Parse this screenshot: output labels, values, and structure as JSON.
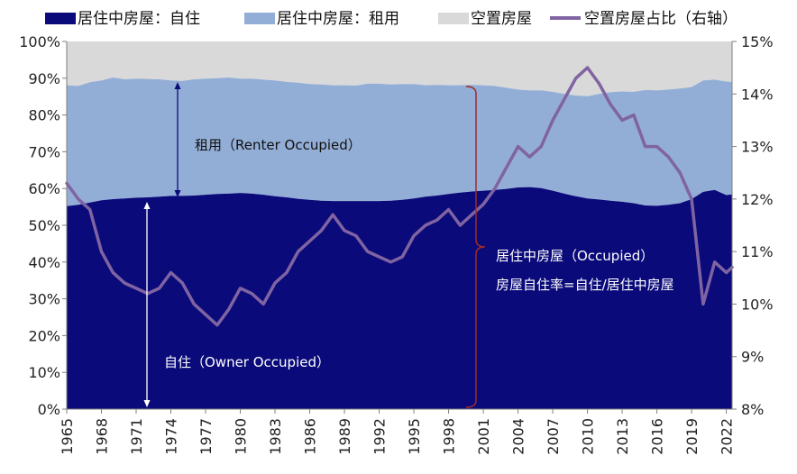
{
  "chart_data": {
    "type": "area",
    "title": "",
    "xlabel": "",
    "ylabel": "",
    "x_ticks": [
      "1965",
      "1968",
      "1971",
      "1974",
      "1977",
      "1980",
      "1983",
      "1986",
      "1989",
      "1992",
      "1995",
      "1998",
      "2001",
      "2004",
      "2007",
      "2010",
      "2013",
      "2016",
      "2019",
      "2022"
    ],
    "y_left_ticks": [
      "0%",
      "10%",
      "20%",
      "30%",
      "40%",
      "50%",
      "60%",
      "70%",
      "80%",
      "90%",
      "100%"
    ],
    "y_right_ticks": [
      "8%",
      "9%",
      "10%",
      "11%",
      "12%",
      "13%",
      "14%",
      "15%"
    ],
    "xlim": [
      1965,
      2022.5
    ],
    "ylim_left": [
      0,
      100
    ],
    "ylim_right": [
      8,
      15
    ],
    "legend": [
      {
        "name": "居住中房屋：自住",
        "kind": "area",
        "color": "#0a0a7a"
      },
      {
        "name": "居住中房屋：租用",
        "kind": "area",
        "color": "#93aed6"
      },
      {
        "name": "空置房屋",
        "kind": "area",
        "color": "#d9d9d9"
      },
      {
        "name": "空置房屋占比（右轴）",
        "kind": "line",
        "color": "#8064a2"
      }
    ],
    "series": [
      {
        "name": "居住中房屋：自住",
        "axis": "left",
        "x": [
          1965,
          1966,
          1967,
          1968,
          1969,
          1970,
          1971,
          1972,
          1973,
          1974,
          1975,
          1976,
          1977,
          1978,
          1979,
          1980,
          1981,
          1982,
          1983,
          1984,
          1985,
          1986,
          1987,
          1988,
          1989,
          1990,
          1991,
          1992,
          1993,
          1994,
          1995,
          1996,
          1997,
          1998,
          1999,
          2000,
          2001,
          2002,
          2003,
          2004,
          2005,
          2006,
          2007,
          2008,
          2009,
          2010,
          2011,
          2012,
          2013,
          2014,
          2015,
          2016,
          2017,
          2018,
          2019,
          2020,
          2021,
          2022,
          2022.5
        ],
        "values": [
          55.2,
          55.6,
          56.2,
          56.8,
          57.1,
          57.3,
          57.5,
          57.6,
          57.8,
          58.0,
          58.0,
          58.1,
          58.3,
          58.5,
          58.6,
          58.8,
          58.6,
          58.3,
          57.9,
          57.6,
          57.2,
          56.9,
          56.7,
          56.6,
          56.6,
          56.6,
          56.6,
          56.6,
          56.7,
          56.9,
          57.3,
          57.8,
          58.1,
          58.5,
          58.9,
          59.2,
          59.4,
          59.6,
          59.9,
          60.3,
          60.4,
          60.1,
          59.4,
          58.6,
          57.9,
          57.3,
          57.0,
          56.7,
          56.4,
          56.0,
          55.4,
          55.3,
          55.6,
          56.0,
          57.1,
          59.1,
          59.6,
          58.2,
          58.4
        ]
      },
      {
        "name": "居住中房屋：租用",
        "axis": "left",
        "x": [
          1965,
          1966,
          1967,
          1968,
          1969,
          1970,
          1971,
          1972,
          1973,
          1974,
          1975,
          1976,
          1977,
          1978,
          1979,
          1980,
          1981,
          1982,
          1983,
          1984,
          1985,
          1986,
          1987,
          1988,
          1989,
          1990,
          1991,
          1992,
          1993,
          1994,
          1995,
          1996,
          1997,
          1998,
          1999,
          2000,
          2001,
          2002,
          2003,
          2004,
          2005,
          2006,
          2007,
          2008,
          2009,
          2010,
          2011,
          2012,
          2013,
          2014,
          2015,
          2016,
          2017,
          2018,
          2019,
          2020,
          2021,
          2022,
          2022.5
        ],
        "values": [
          32.9,
          32.3,
          32.7,
          32.6,
          33.1,
          32.4,
          32.4,
          32.2,
          31.9,
          31.4,
          31.3,
          31.6,
          31.6,
          31.5,
          31.6,
          31.1,
          31.3,
          31.3,
          31.5,
          31.4,
          31.6,
          31.5,
          31.6,
          31.5,
          31.5,
          31.4,
          31.9,
          31.9,
          31.6,
          31.5,
          31.1,
          30.3,
          30.1,
          29.6,
          29.2,
          29.0,
          28.7,
          28.3,
          27.5,
          26.6,
          26.3,
          26.6,
          26.9,
          27.1,
          27.4,
          27.8,
          28.7,
          29.5,
          30.0,
          30.3,
          31.4,
          31.4,
          31.3,
          31.2,
          30.5,
          30.3,
          30.0,
          30.9,
          30.6
        ]
      },
      {
        "name": "空置房屋",
        "axis": "left",
        "x": [
          1965,
          1966,
          1967,
          1968,
          1969,
          1970,
          1971,
          1972,
          1973,
          1974,
          1975,
          1976,
          1977,
          1978,
          1979,
          1980,
          1981,
          1982,
          1983,
          1984,
          1985,
          1986,
          1987,
          1988,
          1989,
          1990,
          1991,
          1992,
          1993,
          1994,
          1995,
          1996,
          1997,
          1998,
          1999,
          2000,
          2001,
          2002,
          2003,
          2004,
          2005,
          2006,
          2007,
          2008,
          2009,
          2010,
          2011,
          2012,
          2013,
          2014,
          2015,
          2016,
          2017,
          2018,
          2019,
          2020,
          2021,
          2022,
          2022.5
        ],
        "values": [
          11.9,
          12.1,
          11.1,
          10.6,
          9.8,
          10.3,
          10.1,
          10.2,
          10.3,
          10.6,
          10.7,
          10.3,
          10.1,
          10.0,
          9.8,
          10.1,
          10.1,
          10.4,
          10.6,
          11.0,
          11.2,
          11.6,
          11.7,
          11.9,
          11.9,
          12.0,
          11.5,
          11.5,
          11.7,
          11.6,
          11.6,
          11.9,
          11.8,
          11.9,
          11.9,
          11.8,
          11.9,
          12.1,
          12.6,
          13.1,
          13.3,
          13.3,
          13.7,
          14.3,
          14.7,
          14.9,
          14.3,
          13.8,
          13.6,
          13.7,
          13.2,
          13.3,
          13.1,
          12.8,
          12.4,
          10.6,
          10.4,
          10.9,
          11.0
        ]
      },
      {
        "name": "空置房屋占比（右轴）",
        "axis": "right",
        "x": [
          1965,
          1966,
          1967,
          1968,
          1969,
          1970,
          1971,
          1972,
          1973,
          1974,
          1975,
          1976,
          1977,
          1978,
          1979,
          1980,
          1981,
          1982,
          1983,
          1984,
          1985,
          1986,
          1987,
          1988,
          1989,
          1990,
          1991,
          1992,
          1993,
          1994,
          1995,
          1996,
          1997,
          1998,
          1999,
          2000,
          2001,
          2002,
          2003,
          2004,
          2005,
          2006,
          2007,
          2008,
          2009,
          2010,
          2011,
          2012,
          2013,
          2014,
          2015,
          2016,
          2017,
          2018,
          2019,
          2020,
          2021,
          2022,
          2022.5
        ],
        "values": [
          12.3,
          12.0,
          11.8,
          11.0,
          10.6,
          10.4,
          10.3,
          10.2,
          10.3,
          10.6,
          10.4,
          10.0,
          9.8,
          9.6,
          9.9,
          10.3,
          10.2,
          10.0,
          10.4,
          10.6,
          11.0,
          11.2,
          11.4,
          11.7,
          11.4,
          11.3,
          11.0,
          10.9,
          10.8,
          10.9,
          11.3,
          11.5,
          11.6,
          11.8,
          11.5,
          11.7,
          11.9,
          12.2,
          12.6,
          13.0,
          12.8,
          13.0,
          13.5,
          13.9,
          14.3,
          14.5,
          14.2,
          13.8,
          13.5,
          13.6,
          13.0,
          13.0,
          12.8,
          12.5,
          12.0,
          10.0,
          10.8,
          10.6,
          10.7
        ]
      }
    ],
    "annotations": [
      {
        "id": "renter",
        "text": "租用（Renter Occupied）"
      },
      {
        "id": "owner",
        "text": "自住（Owner Occupied）"
      },
      {
        "id": "occupied",
        "text": "居住中房屋（Occupied）"
      },
      {
        "id": "formula",
        "text": "房屋自住率=自住/居住中房屋"
      }
    ]
  }
}
